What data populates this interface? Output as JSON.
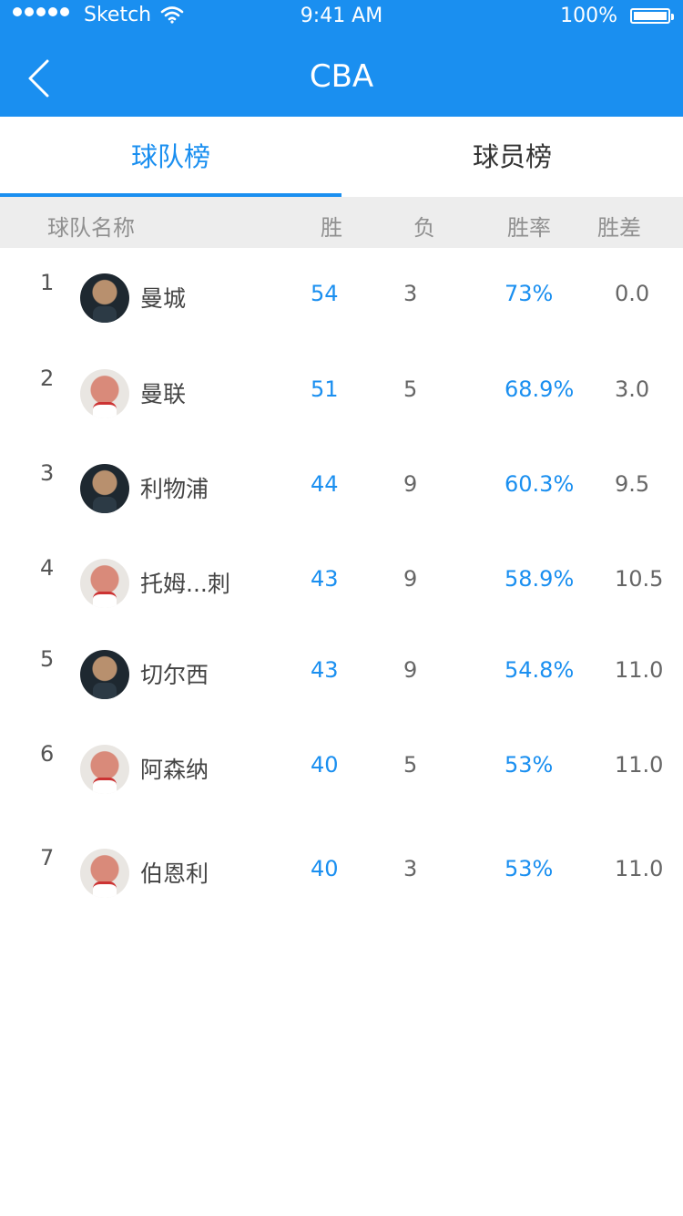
{
  "status_bar": {
    "carrier": "Sketch",
    "time": "9:41 AM",
    "battery": "100%"
  },
  "nav": {
    "title": "CBA",
    "back_icon": "chevron-left-icon"
  },
  "tabs": [
    {
      "label": "球队榜",
      "active": true
    },
    {
      "label": "球员榜",
      "active": false
    }
  ],
  "table": {
    "headers": {
      "team": "球队名称",
      "wins": "胜",
      "losses": "负",
      "win_rate": "胜率",
      "games_behind": "胜差"
    },
    "rows": [
      {
        "rank": "1",
        "name": "曼城",
        "wins": "54",
        "losses": "3",
        "win_rate": "73%",
        "games_behind": "0.0",
        "avatar": "dark"
      },
      {
        "rank": "2",
        "name": "曼联",
        "wins": "51",
        "losses": "5",
        "win_rate": "68.9%",
        "games_behind": "3.0",
        "avatar": "light"
      },
      {
        "rank": "3",
        "name": "利物浦",
        "wins": "44",
        "losses": "9",
        "win_rate": "60.3%",
        "games_behind": "9.5",
        "avatar": "dark"
      },
      {
        "rank": "4",
        "name": "托姆...刺",
        "wins": "43",
        "losses": "9",
        "win_rate": "58.9%",
        "games_behind": "10.5",
        "avatar": "light"
      },
      {
        "rank": "5",
        "name": "切尔西",
        "wins": "43",
        "losses": "9",
        "win_rate": "54.8%",
        "games_behind": "11.0",
        "avatar": "dark"
      },
      {
        "rank": "6",
        "name": "阿森纳",
        "wins": "40",
        "losses": "5",
        "win_rate": "53%",
        "games_behind": "11.0",
        "avatar": "light"
      },
      {
        "rank": "7",
        "name": "伯恩利",
        "wins": "40",
        "losses": "3",
        "win_rate": "53%",
        "games_behind": "11.0",
        "avatar": "light"
      }
    ]
  },
  "colors": {
    "accent": "#1A8FF0",
    "header_bg": "#EDEDED"
  }
}
